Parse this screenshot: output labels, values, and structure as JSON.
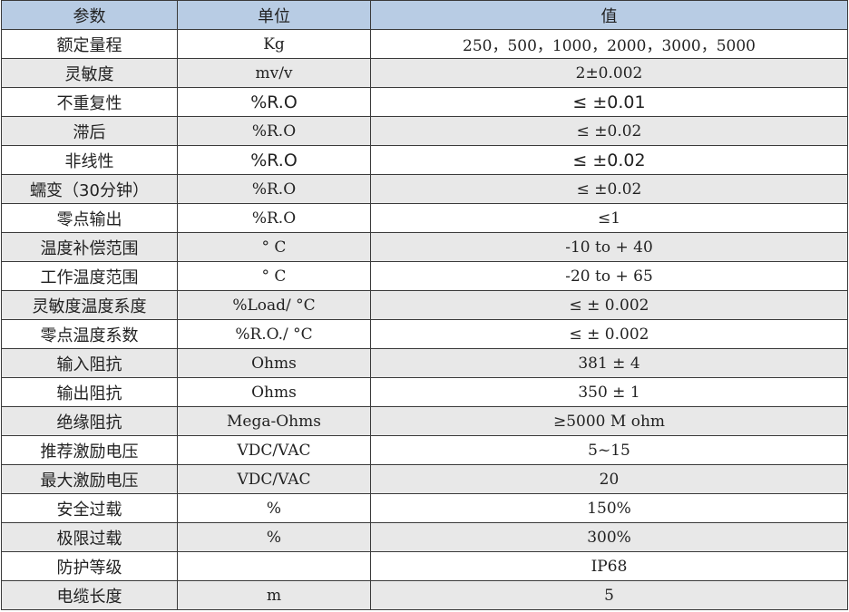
{
  "colors": {
    "header": "#b8cce4",
    "alt_row": "#e8e8e8"
  },
  "headers": [
    "参数",
    "单位",
    "值"
  ],
  "rows": [
    {
      "param": "额定量程",
      "unit": "Kg",
      "value": "250，500，1000，2000，3000，5000"
    },
    {
      "param": "灵敏度",
      "unit": "mv/v",
      "value": "2±0.002"
    },
    {
      "param": "不重复性",
      "unit": "%R.O",
      "value": "≤ ±0.01"
    },
    {
      "param": "滞后",
      "unit": "%R.O",
      "value": "≤ ±0.02"
    },
    {
      "param": "非线性",
      "unit": "%R.O",
      "value": "≤ ±0.02"
    },
    {
      "param": "蠕变（30分钟）",
      "unit": "%R.O",
      "value": "≤ ±0.02"
    },
    {
      "param": "零点输出",
      "unit": "%R.O",
      "value": "≤1"
    },
    {
      "param": "温度补偿范围",
      "unit": "° C",
      "value": "-10 to + 40"
    },
    {
      "param": "工作温度范围",
      "unit": "° C",
      "value": "-20 to + 65"
    },
    {
      "param": "灵敏度温度系度",
      "unit": "%Load/ °C",
      "value": "≤ ± 0.002"
    },
    {
      "param": "零点温度系数",
      "unit": "%R.O./ °C",
      "value": "≤ ± 0.002"
    },
    {
      "param": "输入阻抗",
      "unit": "Ohms",
      "value": "381 ± 4"
    },
    {
      "param": "输出阻抗",
      "unit": "Ohms",
      "value": "350 ± 1"
    },
    {
      "param": "绝缘阻抗",
      "unit": "Mega-Ohms",
      "value": "≥5000 M ohm"
    },
    {
      "param": "推荐激励电压",
      "unit": "VDC/VAC",
      "value": "5~15"
    },
    {
      "param": "最大激励电压",
      "unit": "VDC/VAC",
      "value": "20"
    },
    {
      "param": "安全过载",
      "unit": "%",
      "value": "150%"
    },
    {
      "param": "极限过载",
      "unit": "%",
      "value": "300%"
    },
    {
      "param": "防护等级",
      "unit": "",
      "value": "IP68"
    },
    {
      "param": "电缆长度",
      "unit": "m",
      "value": "5"
    }
  ]
}
